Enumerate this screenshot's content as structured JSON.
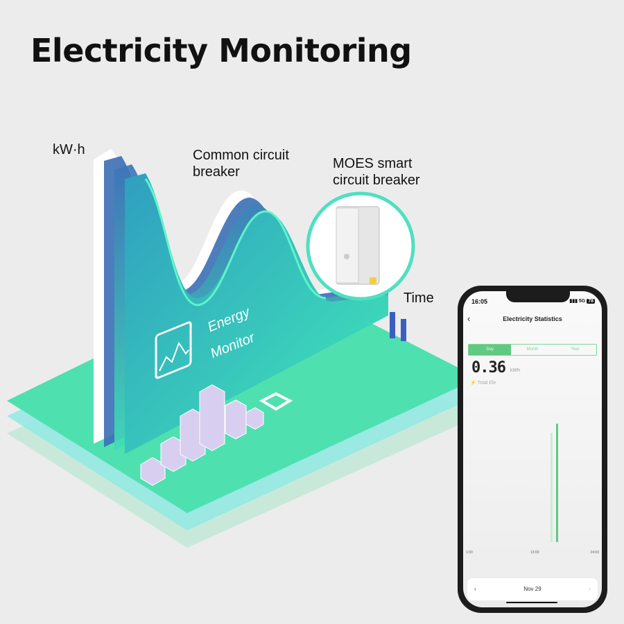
{
  "title": "Electricity Monitoring",
  "labels": {
    "y_axis": "kW·h",
    "common": "Common circuit breaker",
    "common_l1": "Common circuit",
    "common_l2": "breaker",
    "moes_l1": "MOES smart",
    "moes_l2": "circuit breaker",
    "x_axis": "Time",
    "monitor_l1": "Energy",
    "monitor_l2": "Monitor"
  },
  "colors": {
    "accent": "#62c982",
    "plane": "#4fe0b0",
    "curve": "#2bb8c0"
  },
  "phone": {
    "time": "16:05",
    "signal": "5G",
    "battery": "78",
    "header": "Electricity Statistics",
    "tabs": [
      {
        "label": "Day",
        "active": true
      },
      {
        "label": "Month"
      },
      {
        "label": "Year"
      }
    ],
    "value": "0.36",
    "unit": "kWh",
    "total_label": "Total Ele",
    "chart": {
      "x_labels": [
        "1:00",
        "13:00",
        "24:00"
      ],
      "bars": [
        {
          "fraction": 0.88,
          "faded": true
        },
        {
          "fraction": 0.95,
          "faded": false
        }
      ]
    },
    "date": "Nov 29",
    "prev": "‹",
    "next": "›",
    "back": "‹"
  }
}
